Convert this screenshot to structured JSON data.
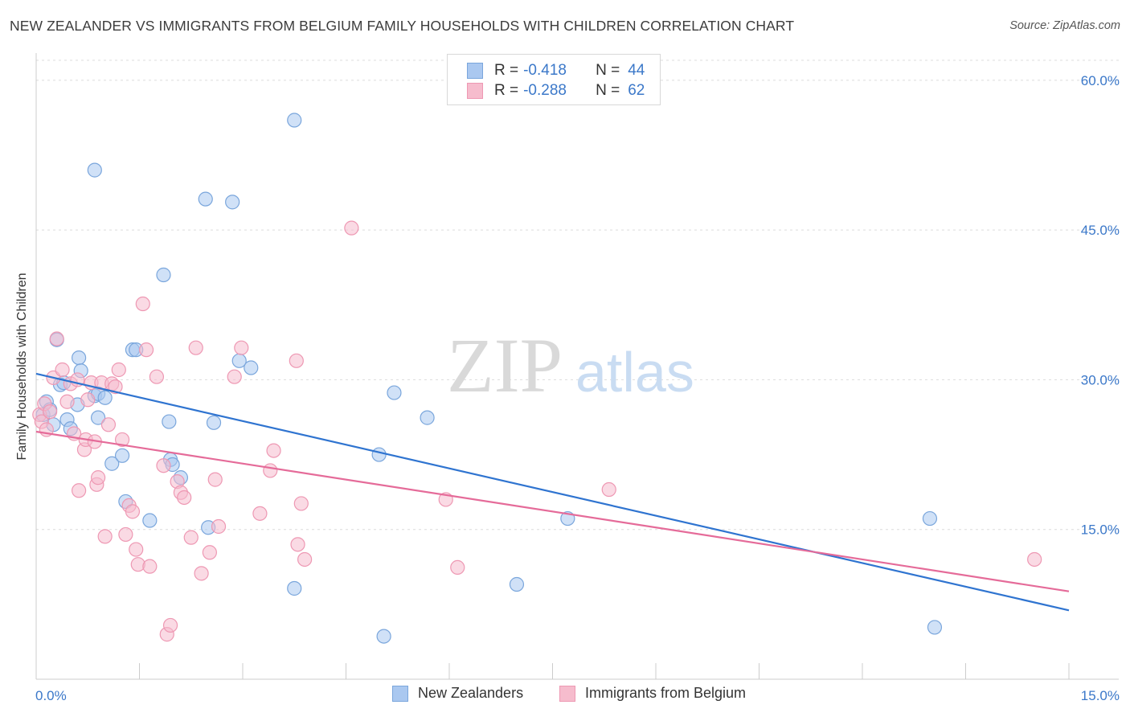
{
  "title": "NEW ZEALANDER VS IMMIGRANTS FROM BELGIUM FAMILY HOUSEHOLDS WITH CHILDREN CORRELATION CHART",
  "source": "Source: ZipAtlas.com",
  "watermark": {
    "zip": "ZIP",
    "atlas": "atlas"
  },
  "colors": {
    "blue_fill": "#aac8f0",
    "blue_stroke": "#7aa6dc",
    "blue_line": "#2f74d0",
    "pink_fill": "#f6bccd",
    "pink_stroke": "#ee98b3",
    "pink_line": "#e56b99",
    "tick_text": "#3b78c9",
    "grid": "#dcdcdc"
  },
  "legend": {
    "rows": [
      {
        "r_label": "R =",
        "r_value": "-0.418",
        "n_label": "N =",
        "n_value": "44"
      },
      {
        "r_label": "R =",
        "r_value": "-0.288",
        "n_label": "N =",
        "n_value": "62"
      }
    ]
  },
  "bottom_legend": {
    "series1": "New Zealanders",
    "series2": "Immigrants from Belgium"
  },
  "chart_data": {
    "type": "scatter",
    "title": "NEW ZEALANDER VS IMMIGRANTS FROM BELGIUM FAMILY HOUSEHOLDS WITH CHILDREN CORRELATION CHART",
    "xlabel": "",
    "ylabel": "Family Households with Children",
    "xlim": [
      0,
      15
    ],
    "ylim": [
      0,
      62
    ],
    "x_tick_labels": [
      "0.0%",
      "15.0%"
    ],
    "y_ticks": [
      15,
      30,
      45,
      60
    ],
    "y_tick_labels": [
      "15.0%",
      "30.0%",
      "45.0%",
      "60.0%"
    ],
    "grid": true,
    "series": [
      {
        "name": "New Zealanders",
        "r": -0.418,
        "n": 44,
        "trend": {
          "x0": 0.0,
          "y0": 30.6,
          "x1": 15.0,
          "y1": 6.9
        },
        "points": [
          [
            0.1,
            26.5
          ],
          [
            0.15,
            27.8
          ],
          [
            0.2,
            27.0
          ],
          [
            0.25,
            25.5
          ],
          [
            0.3,
            34.0
          ],
          [
            0.35,
            29.5
          ],
          [
            0.4,
            29.7
          ],
          [
            0.45,
            26.0
          ],
          [
            0.5,
            25.1
          ],
          [
            0.6,
            27.5
          ],
          [
            0.62,
            32.2
          ],
          [
            0.65,
            30.9
          ],
          [
            0.85,
            51.0
          ],
          [
            0.85,
            28.4
          ],
          [
            0.9,
            28.6
          ],
          [
            0.9,
            26.2
          ],
          [
            1.0,
            28.2
          ],
          [
            1.1,
            21.6
          ],
          [
            1.25,
            22.4
          ],
          [
            1.3,
            17.8
          ],
          [
            1.4,
            33.0
          ],
          [
            1.45,
            33.0
          ],
          [
            1.65,
            15.9
          ],
          [
            1.85,
            40.5
          ],
          [
            1.93,
            25.8
          ],
          [
            1.95,
            22.0
          ],
          [
            1.98,
            21.5
          ],
          [
            2.1,
            20.2
          ],
          [
            2.46,
            48.1
          ],
          [
            2.5,
            15.2
          ],
          [
            2.58,
            25.7
          ],
          [
            2.85,
            47.8
          ],
          [
            2.95,
            31.9
          ],
          [
            3.12,
            31.2
          ],
          [
            3.75,
            56.0
          ],
          [
            3.75,
            9.1
          ],
          [
            4.98,
            22.5
          ],
          [
            5.05,
            4.3
          ],
          [
            5.2,
            28.7
          ],
          [
            5.68,
            26.2
          ],
          [
            6.98,
            9.5
          ],
          [
            7.72,
            16.1
          ],
          [
            12.98,
            16.1
          ],
          [
            13.05,
            5.2
          ]
        ]
      },
      {
        "name": "Immigrants from Belgium",
        "r": -0.288,
        "n": 62,
        "trend": {
          "x0": 0.0,
          "y0": 24.8,
          "x1": 15.0,
          "y1": 8.8
        },
        "points": [
          [
            0.05,
            26.5
          ],
          [
            0.08,
            25.8
          ],
          [
            0.12,
            27.6
          ],
          [
            0.15,
            25.0
          ],
          [
            0.2,
            26.8
          ],
          [
            0.25,
            30.2
          ],
          [
            0.3,
            34.1
          ],
          [
            0.38,
            31.0
          ],
          [
            0.45,
            27.8
          ],
          [
            0.5,
            29.6
          ],
          [
            0.55,
            24.6
          ],
          [
            0.6,
            30.0
          ],
          [
            0.62,
            18.9
          ],
          [
            0.7,
            23.0
          ],
          [
            0.72,
            24.0
          ],
          [
            0.75,
            28.0
          ],
          [
            0.8,
            29.7
          ],
          [
            0.85,
            23.8
          ],
          [
            0.88,
            19.5
          ],
          [
            0.9,
            20.2
          ],
          [
            0.95,
            29.7
          ],
          [
            1.0,
            14.3
          ],
          [
            1.05,
            25.5
          ],
          [
            1.1,
            29.6
          ],
          [
            1.15,
            29.3
          ],
          [
            1.2,
            31.0
          ],
          [
            1.25,
            24.0
          ],
          [
            1.3,
            14.5
          ],
          [
            1.35,
            17.4
          ],
          [
            1.4,
            16.8
          ],
          [
            1.45,
            13.0
          ],
          [
            1.48,
            11.5
          ],
          [
            1.55,
            37.6
          ],
          [
            1.6,
            33.0
          ],
          [
            1.65,
            11.3
          ],
          [
            1.75,
            30.3
          ],
          [
            1.85,
            21.4
          ],
          [
            1.9,
            4.5
          ],
          [
            1.95,
            5.4
          ],
          [
            2.05,
            19.8
          ],
          [
            2.1,
            18.7
          ],
          [
            2.15,
            18.2
          ],
          [
            2.25,
            14.2
          ],
          [
            2.32,
            33.2
          ],
          [
            2.4,
            10.6
          ],
          [
            2.52,
            12.7
          ],
          [
            2.6,
            20.0
          ],
          [
            2.65,
            15.3
          ],
          [
            2.88,
            30.3
          ],
          [
            2.98,
            33.2
          ],
          [
            3.25,
            16.6
          ],
          [
            3.4,
            20.9
          ],
          [
            3.45,
            22.9
          ],
          [
            3.78,
            31.9
          ],
          [
            3.8,
            13.5
          ],
          [
            3.85,
            17.6
          ],
          [
            3.9,
            12.0
          ],
          [
            4.58,
            45.2
          ],
          [
            5.95,
            18.0
          ],
          [
            6.12,
            11.2
          ],
          [
            8.32,
            19.0
          ],
          [
            14.5,
            12.0
          ]
        ]
      }
    ]
  }
}
